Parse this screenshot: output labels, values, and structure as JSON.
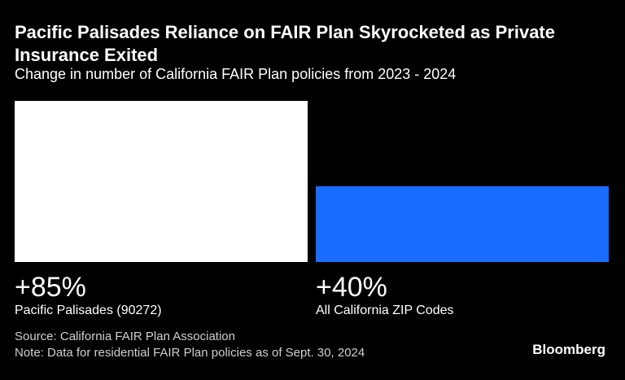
{
  "title": "Pacific Palisades Reliance on FAIR Plan Skyrocketed as Private Insurance Exited",
  "subtitle": "Change in number of California FAIR Plan policies from 2023 - 2024",
  "source": "Source: California FAIR Plan Association",
  "note": "Note: Data for residential FAIR Plan policies as of Sept. 30, 2024",
  "brand": "Bloomberg",
  "colors": {
    "background": "#000000",
    "palisades": "#ffffff",
    "california": "#1a6bff"
  },
  "chart_data": {
    "type": "bar",
    "categories": [
      "Pacific Palisades (90272)",
      "All California ZIP Codes"
    ],
    "values": [
      85,
      40
    ],
    "value_labels": [
      "+85%",
      "+40%"
    ],
    "ylim": [
      0,
      85
    ],
    "grid": false,
    "legend": "none"
  }
}
